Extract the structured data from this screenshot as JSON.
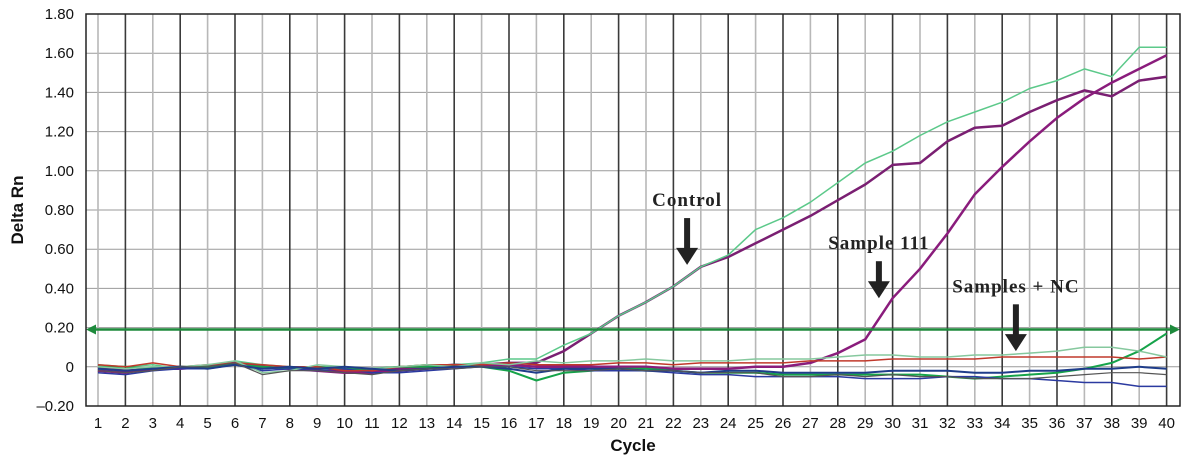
{
  "chart_data": {
    "type": "line",
    "title": "",
    "xlabel": "Cycle",
    "ylabel": "Delta Rn",
    "xlim": [
      1,
      40
    ],
    "ylim": [
      -0.2,
      1.8
    ],
    "x_ticks": [
      "1",
      "2",
      "3",
      "4",
      "5",
      "6",
      "7",
      "8",
      "9",
      "10",
      "11",
      "12",
      "13",
      "14",
      "15",
      "16",
      "17",
      "18",
      "19",
      "20",
      "21",
      "22",
      "23",
      "24",
      "25",
      "26",
      "27",
      "28",
      "29",
      "30",
      "31",
      "32",
      "33",
      "34",
      "35",
      "36",
      "37",
      "38",
      "39",
      "40"
    ],
    "y_ticks": [
      "1.80",
      "1.60",
      "1.40",
      "1.20",
      "1.00",
      "0.80",
      "0.60",
      "0.40",
      "0.20",
      "0",
      "–0.20"
    ],
    "grid": true,
    "threshold": {
      "value": 0.19,
      "color": "#1e8a3c"
    },
    "annotations": [
      {
        "text": "Control",
        "x": 22.5,
        "y": 0.82,
        "arrow_to": [
          22.5,
          0.52
        ]
      },
      {
        "text": "Sample 111",
        "x": 29.5,
        "y": 0.6,
        "arrow_to": [
          29.5,
          0.35
        ]
      },
      {
        "text": "Samples + NC",
        "x": 34.5,
        "y": 0.38,
        "arrow_to": [
          34.5,
          0.08
        ]
      }
    ],
    "series": [
      {
        "color": "#7a1f72",
        "width": 2.5,
        "x": [
          1,
          2,
          3,
          4,
          5,
          6,
          7,
          8,
          9,
          10,
          11,
          12,
          13,
          14,
          15,
          16,
          17,
          18,
          19,
          20,
          21,
          22,
          23,
          24,
          25,
          26,
          27,
          28,
          29,
          30,
          31,
          32,
          33,
          34,
          35,
          36,
          37,
          38,
          39,
          40
        ],
        "values": [
          0,
          -0.02,
          -0.01,
          0,
          0,
          0.02,
          0,
          -0.01,
          -0.01,
          -0.02,
          -0.02,
          -0.01,
          0,
          0.01,
          0.01,
          0.02,
          0.02,
          0.08,
          0.17,
          0.26,
          0.33,
          0.41,
          0.51,
          0.56,
          0.63,
          0.7,
          0.77,
          0.85,
          0.93,
          1.03,
          1.04,
          1.15,
          1.22,
          1.23,
          1.3,
          1.36,
          1.41,
          1.38,
          1.46,
          1.48
        ]
      },
      {
        "color": "#5cc98a",
        "width": 1.5,
        "x": [
          1,
          2,
          3,
          4,
          5,
          6,
          7,
          8,
          9,
          10,
          11,
          12,
          13,
          14,
          15,
          16,
          17,
          18,
          19,
          20,
          21,
          22,
          23,
          24,
          25,
          26,
          27,
          28,
          29,
          30,
          31,
          32,
          33,
          34,
          35,
          36,
          37,
          38,
          39,
          40
        ],
        "values": [
          0.01,
          0,
          0.01,
          -0.01,
          0,
          0.03,
          0.01,
          0,
          -0.01,
          -0.01,
          -0.01,
          0,
          0.01,
          0.01,
          0.02,
          0.04,
          0.04,
          0.11,
          0.17,
          0.26,
          0.33,
          0.41,
          0.51,
          0.57,
          0.7,
          0.76,
          0.84,
          0.94,
          1.04,
          1.1,
          1.18,
          1.25,
          1.3,
          1.35,
          1.42,
          1.46,
          1.52,
          1.48,
          1.63,
          1.63
        ]
      },
      {
        "color": "#8a1c7c",
        "width": 2.5,
        "x": [
          1,
          2,
          3,
          4,
          5,
          6,
          7,
          8,
          9,
          10,
          11,
          12,
          13,
          14,
          15,
          16,
          17,
          18,
          19,
          20,
          21,
          22,
          23,
          24,
          25,
          26,
          27,
          28,
          29,
          30,
          31,
          32,
          33,
          34,
          35,
          36,
          37,
          38,
          39,
          40
        ],
        "values": [
          -0.02,
          -0.03,
          -0.01,
          -0.01,
          0,
          0.02,
          0,
          -0.01,
          -0.02,
          -0.03,
          -0.03,
          -0.02,
          -0.01,
          0,
          0.01,
          0.01,
          0,
          0,
          0,
          0,
          0,
          -0.01,
          -0.01,
          -0.01,
          0,
          0,
          0.02,
          0.07,
          0.14,
          0.35,
          0.5,
          0.68,
          0.88,
          1.02,
          1.15,
          1.27,
          1.37,
          1.45,
          1.52,
          1.59
        ]
      },
      {
        "color": "#16a34a",
        "width": 2,
        "x": [
          1,
          2,
          3,
          4,
          5,
          6,
          7,
          8,
          9,
          10,
          11,
          12,
          13,
          14,
          15,
          16,
          17,
          18,
          19,
          20,
          21,
          22,
          23,
          24,
          25,
          26,
          27,
          28,
          29,
          30,
          31,
          32,
          33,
          34,
          35,
          36,
          37,
          38,
          39,
          40
        ],
        "values": [
          0,
          0,
          -0.01,
          0,
          0,
          0.01,
          0,
          -0.01,
          0,
          -0.01,
          -0.01,
          0,
          0,
          0.01,
          0,
          -0.02,
          -0.07,
          -0.03,
          -0.02,
          -0.01,
          -0.01,
          -0.02,
          -0.03,
          -0.03,
          -0.03,
          -0.04,
          -0.04,
          -0.04,
          -0.04,
          -0.04,
          -0.04,
          -0.05,
          -0.06,
          -0.05,
          -0.04,
          -0.03,
          -0.01,
          0.02,
          0.08,
          0.17
        ]
      },
      {
        "color": "#2b3aa0",
        "width": 1.5,
        "x": [
          1,
          2,
          3,
          4,
          5,
          6,
          7,
          8,
          9,
          10,
          11,
          12,
          13,
          14,
          15,
          16,
          17,
          18,
          19,
          20,
          21,
          22,
          23,
          24,
          25,
          26,
          27,
          28,
          29,
          30,
          31,
          32,
          33,
          34,
          35,
          36,
          37,
          38,
          39,
          40
        ],
        "values": [
          -0.03,
          -0.04,
          -0.02,
          -0.01,
          -0.01,
          0.01,
          -0.02,
          -0.01,
          -0.02,
          -0.01,
          -0.03,
          -0.03,
          -0.02,
          -0.01,
          0,
          0,
          -0.01,
          -0.01,
          -0.02,
          -0.02,
          -0.02,
          -0.03,
          -0.04,
          -0.04,
          -0.05,
          -0.05,
          -0.05,
          -0.05,
          -0.06,
          -0.06,
          -0.06,
          -0.05,
          -0.05,
          -0.06,
          -0.06,
          -0.07,
          -0.08,
          -0.08,
          -0.1,
          -0.1
        ]
      },
      {
        "color": "#c0392b",
        "width": 1.5,
        "x": [
          1,
          2,
          3,
          4,
          5,
          6,
          7,
          8,
          9,
          10,
          11,
          12,
          13,
          14,
          15,
          16,
          17,
          18,
          19,
          20,
          21,
          22,
          23,
          24,
          25,
          26,
          27,
          28,
          29,
          30,
          31,
          32,
          33,
          34,
          35,
          36,
          37,
          38,
          39,
          40
        ],
        "values": [
          0.01,
          0,
          0.02,
          0,
          0.01,
          0.02,
          0.01,
          0,
          0,
          -0.02,
          -0.02,
          0,
          0.01,
          0.01,
          0.01,
          0.02,
          0.01,
          0.01,
          0.01,
          0.02,
          0.02,
          0.01,
          0.02,
          0.02,
          0.02,
          0.02,
          0.03,
          0.03,
          0.03,
          0.04,
          0.04,
          0.04,
          0.04,
          0.05,
          0.05,
          0.05,
          0.05,
          0.05,
          0.04,
          0.05
        ]
      },
      {
        "color": "#86c89e",
        "width": 1.5,
        "x": [
          1,
          2,
          3,
          4,
          5,
          6,
          7,
          8,
          9,
          10,
          11,
          12,
          13,
          14,
          15,
          16,
          17,
          18,
          19,
          20,
          21,
          22,
          23,
          24,
          25,
          26,
          27,
          28,
          29,
          30,
          31,
          32,
          33,
          34,
          35,
          36,
          37,
          38,
          39,
          40
        ],
        "values": [
          0,
          -0.01,
          0,
          0,
          0.01,
          0.03,
          -0.03,
          -0.02,
          0.01,
          0,
          -0.01,
          0,
          0.01,
          0,
          0.02,
          0.01,
          0.03,
          0.02,
          0.03,
          0.03,
          0.04,
          0.03,
          0.03,
          0.03,
          0.04,
          0.04,
          0.04,
          0.05,
          0.06,
          0.06,
          0.05,
          0.05,
          0.06,
          0.06,
          0.07,
          0.08,
          0.1,
          0.1,
          0.08,
          0.05
        ]
      },
      {
        "color": "#1f3d8a",
        "width": 2,
        "x": [
          1,
          2,
          3,
          4,
          5,
          6,
          7,
          8,
          9,
          10,
          11,
          12,
          13,
          14,
          15,
          16,
          17,
          18,
          19,
          20,
          21,
          22,
          23,
          24,
          25,
          26,
          27,
          28,
          29,
          30,
          31,
          32,
          33,
          34,
          35,
          36,
          37,
          38,
          39,
          40
        ],
        "values": [
          -0.01,
          -0.02,
          -0.01,
          0,
          -0.01,
          0.01,
          -0.01,
          0,
          -0.01,
          0,
          -0.01,
          -0.02,
          -0.01,
          0,
          0,
          -0.01,
          -0.03,
          -0.01,
          -0.01,
          -0.01,
          -0.02,
          -0.02,
          -0.03,
          -0.02,
          -0.02,
          -0.03,
          -0.03,
          -0.03,
          -0.03,
          -0.02,
          -0.02,
          -0.02,
          -0.03,
          -0.03,
          -0.02,
          -0.02,
          -0.01,
          -0.01,
          0,
          -0.01
        ]
      },
      {
        "color": "#555555",
        "width": 1.2,
        "x": [
          1,
          2,
          3,
          4,
          5,
          6,
          7,
          8,
          9,
          10,
          11,
          12,
          13,
          14,
          15,
          16,
          17,
          18,
          19,
          20,
          21,
          22,
          23,
          24,
          25,
          26,
          27,
          28,
          29,
          30,
          31,
          32,
          33,
          34,
          35,
          36,
          37,
          38,
          39,
          40
        ],
        "values": [
          -0.02,
          -0.03,
          -0.02,
          0,
          0,
          0.02,
          -0.04,
          -0.02,
          -0.02,
          -0.03,
          -0.04,
          -0.02,
          -0.01,
          -0.01,
          0,
          0,
          -0.02,
          -0.02,
          -0.02,
          -0.01,
          -0.02,
          -0.02,
          -0.03,
          -0.03,
          -0.03,
          -0.05,
          -0.05,
          -0.04,
          -0.05,
          -0.04,
          -0.05,
          -0.05,
          -0.06,
          -0.06,
          -0.06,
          -0.05,
          -0.04,
          -0.03,
          -0.03,
          -0.04
        ]
      }
    ]
  }
}
